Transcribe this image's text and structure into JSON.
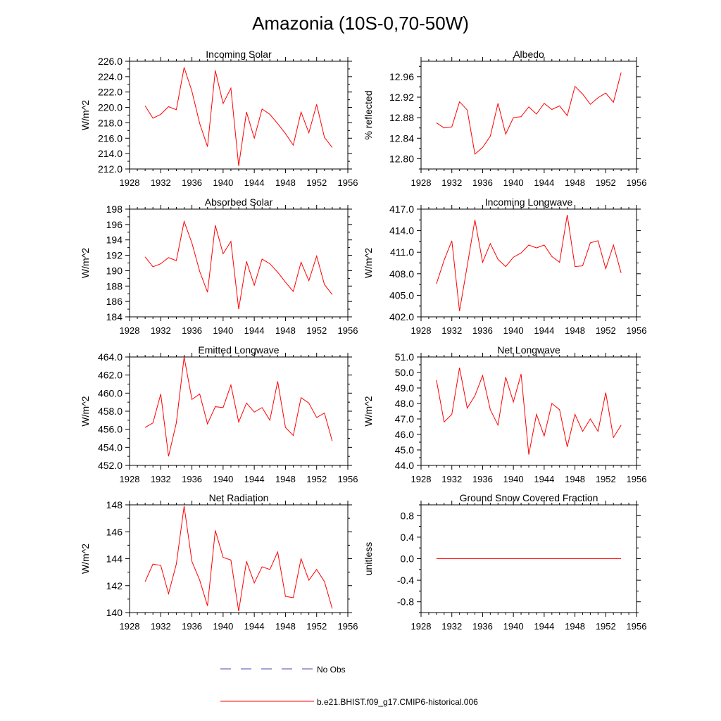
{
  "title": "Amazonia (10S-0,70-50W)",
  "colors": {
    "model": "#ff0000",
    "obs": "#4a4aa8",
    "axis": "#000000"
  },
  "legend": {
    "obs_label": "No Obs",
    "model_label": "b.e21.BHIST.f09_g17.CMIP6-historical.006"
  },
  "chart_data": [
    {
      "type": "line",
      "title": "Incoming Solar",
      "xlabel": "",
      "ylabel": "W/m^2",
      "xlim": [
        1928,
        1956
      ],
      "ylim": [
        212,
        226
      ],
      "xticks": [
        1928,
        1932,
        1936,
        1940,
        1944,
        1948,
        1952,
        1956
      ],
      "yticks": [
        212.0,
        214.0,
        216.0,
        218.0,
        220.0,
        222.0,
        224.0,
        226.0
      ],
      "ytick_labels": [
        "212.0",
        "214.0",
        "216.0",
        "218.0",
        "220.0",
        "222.0",
        "224.0",
        "226.0"
      ],
      "x": [
        1930,
        1931,
        1932,
        1933,
        1934,
        1935,
        1936,
        1937,
        1938,
        1939,
        1940,
        1941,
        1942,
        1943,
        1944,
        1945,
        1946,
        1947,
        1948,
        1949,
        1950,
        1951,
        1952,
        1953,
        1954
      ],
      "series": [
        {
          "name": "b.e21.BHIST.f09_g17.CMIP6-historical.006",
          "values": [
            220.2,
            218.6,
            219.1,
            220.1,
            219.7,
            225.2,
            222.1,
            217.9,
            214.9,
            224.8,
            220.5,
            222.5,
            212.4,
            219.4,
            216.0,
            219.8,
            219.1,
            217.9,
            216.6,
            215.1,
            219.4,
            216.7,
            220.4,
            216.1,
            214.8
          ]
        }
      ]
    },
    {
      "type": "line",
      "title": "Albedo",
      "xlabel": "",
      "ylabel": "% reflected",
      "xlim": [
        1928,
        1956
      ],
      "ylim": [
        12.78,
        12.99
      ],
      "xticks": [
        1928,
        1932,
        1936,
        1940,
        1944,
        1948,
        1952,
        1956
      ],
      "yticks": [
        12.8,
        12.84,
        12.88,
        12.92,
        12.96
      ],
      "ytick_labels": [
        "12.80",
        "12.84",
        "12.88",
        "12.92",
        "12.96"
      ],
      "x": [
        1930,
        1931,
        1932,
        1933,
        1934,
        1935,
        1936,
        1937,
        1938,
        1939,
        1940,
        1941,
        1942,
        1943,
        1944,
        1945,
        1946,
        1947,
        1948,
        1949,
        1950,
        1951,
        1952,
        1953,
        1954
      ],
      "series": [
        {
          "name": "b.e21.BHIST.f09_g17.CMIP6-historical.006",
          "values": [
            12.87,
            12.86,
            12.862,
            12.911,
            12.895,
            12.809,
            12.822,
            12.844,
            12.908,
            12.848,
            12.88,
            12.882,
            12.901,
            12.887,
            12.908,
            12.896,
            12.903,
            12.884,
            12.941,
            12.926,
            12.906,
            12.919,
            12.928,
            12.91,
            12.968
          ]
        }
      ]
    },
    {
      "type": "line",
      "title": "Absorbed Solar",
      "xlabel": "",
      "ylabel": "W/m^2",
      "xlim": [
        1928,
        1956
      ],
      "ylim": [
        184,
        198
      ],
      "xticks": [
        1928,
        1932,
        1936,
        1940,
        1944,
        1948,
        1952,
        1956
      ],
      "yticks": [
        184,
        186,
        188,
        190,
        192,
        194,
        196,
        198
      ],
      "ytick_labels": [
        "184",
        "186",
        "188",
        "190",
        "192",
        "194",
        "196",
        "198"
      ],
      "x": [
        1930,
        1931,
        1932,
        1933,
        1934,
        1935,
        1936,
        1937,
        1938,
        1939,
        1940,
        1941,
        1942,
        1943,
        1944,
        1945,
        1946,
        1947,
        1948,
        1949,
        1950,
        1951,
        1952,
        1953,
        1954
      ],
      "series": [
        {
          "name": "b.e21.BHIST.f09_g17.CMIP6-historical.006",
          "values": [
            191.8,
            190.5,
            190.9,
            191.7,
            191.3,
            196.4,
            193.6,
            189.9,
            187.2,
            195.9,
            192.2,
            193.8,
            185.0,
            191.2,
            188.1,
            191.5,
            190.9,
            189.8,
            188.5,
            187.3,
            191.1,
            188.7,
            191.9,
            188.2,
            186.9
          ]
        }
      ]
    },
    {
      "type": "line",
      "title": "Incoming Longwave",
      "xlabel": "",
      "ylabel": "W/m^2",
      "xlim": [
        1928,
        1956
      ],
      "ylim": [
        402,
        417
      ],
      "xticks": [
        1928,
        1932,
        1936,
        1940,
        1944,
        1948,
        1952,
        1956
      ],
      "yticks": [
        402.0,
        405.0,
        408.0,
        411.0,
        414.0,
        417.0
      ],
      "ytick_labels": [
        "402.0",
        "405.0",
        "408.0",
        "411.0",
        "414.0",
        "417.0"
      ],
      "x": [
        1930,
        1931,
        1932,
        1933,
        1934,
        1935,
        1936,
        1937,
        1938,
        1939,
        1940,
        1941,
        1942,
        1943,
        1944,
        1945,
        1946,
        1947,
        1948,
        1949,
        1950,
        1951,
        1952,
        1953,
        1954
      ],
      "series": [
        {
          "name": "b.e21.BHIST.f09_g17.CMIP6-historical.006",
          "values": [
            406.6,
            409.9,
            412.6,
            402.8,
            409.1,
            415.5,
            409.6,
            412.2,
            410.0,
            409.0,
            410.3,
            410.9,
            412.0,
            411.6,
            412.0,
            410.4,
            409.6,
            416.2,
            409.0,
            409.1,
            412.3,
            412.6,
            408.7,
            412.0,
            408.1
          ]
        }
      ]
    },
    {
      "type": "line",
      "title": "Emitted Longwave",
      "xlabel": "",
      "ylabel": "W/m^2",
      "xlim": [
        1928,
        1956
      ],
      "ylim": [
        452,
        464
      ],
      "xticks": [
        1928,
        1932,
        1936,
        1940,
        1944,
        1948,
        1952,
        1956
      ],
      "yticks": [
        452.0,
        454.0,
        456.0,
        458.0,
        460.0,
        462.0,
        464.0
      ],
      "ytick_labels": [
        "452.0",
        "454.0",
        "456.0",
        "458.0",
        "460.0",
        "462.0",
        "464.0"
      ],
      "x": [
        1930,
        1931,
        1932,
        1933,
        1934,
        1935,
        1936,
        1937,
        1938,
        1939,
        1940,
        1941,
        1942,
        1943,
        1944,
        1945,
        1946,
        1947,
        1948,
        1949,
        1950,
        1951,
        1952,
        1953,
        1954
      ],
      "series": [
        {
          "name": "b.e21.BHIST.f09_g17.CMIP6-historical.006",
          "values": [
            456.2,
            456.7,
            459.9,
            453.0,
            456.7,
            464.0,
            459.3,
            459.9,
            456.6,
            458.5,
            458.4,
            460.9,
            456.8,
            458.9,
            457.9,
            458.4,
            457.0,
            461.3,
            456.2,
            455.3,
            459.5,
            458.9,
            457.3,
            457.8,
            454.7
          ]
        }
      ]
    },
    {
      "type": "line",
      "title": "Net Longwave",
      "xlabel": "",
      "ylabel": "W/m^2",
      "xlim": [
        1928,
        1956
      ],
      "ylim": [
        44,
        51
      ],
      "xticks": [
        1928,
        1932,
        1936,
        1940,
        1944,
        1948,
        1952,
        1956
      ],
      "yticks": [
        44.0,
        45.0,
        46.0,
        47.0,
        48.0,
        49.0,
        50.0,
        51.0
      ],
      "ytick_labels": [
        "44.0",
        "45.0",
        "46.0",
        "47.0",
        "48.0",
        "49.0",
        "50.0",
        "51.0"
      ],
      "x": [
        1930,
        1931,
        1932,
        1933,
        1934,
        1935,
        1936,
        1937,
        1938,
        1939,
        1940,
        1941,
        1942,
        1943,
        1944,
        1945,
        1946,
        1947,
        1948,
        1949,
        1950,
        1951,
        1952,
        1953,
        1954
      ],
      "series": [
        {
          "name": "b.e21.BHIST.f09_g17.CMIP6-historical.006",
          "values": [
            49.5,
            46.8,
            47.3,
            50.3,
            47.7,
            48.5,
            49.8,
            47.6,
            46.6,
            49.7,
            48.1,
            49.9,
            44.7,
            47.3,
            45.9,
            48.0,
            47.6,
            45.2,
            47.3,
            46.2,
            47.0,
            46.2,
            48.7,
            45.8,
            46.6
          ]
        }
      ]
    },
    {
      "type": "line",
      "title": "Net Radiation",
      "xlabel": "",
      "ylabel": "W/m^2",
      "xlim": [
        1928,
        1956
      ],
      "ylim": [
        140,
        148
      ],
      "xticks": [
        1928,
        1932,
        1936,
        1940,
        1944,
        1948,
        1952,
        1956
      ],
      "yticks": [
        140,
        142,
        144,
        146,
        148
      ],
      "ytick_labels": [
        "140",
        "142",
        "144",
        "146",
        "148"
      ],
      "x": [
        1930,
        1931,
        1932,
        1933,
        1934,
        1935,
        1936,
        1937,
        1938,
        1939,
        1940,
        1941,
        1942,
        1943,
        1944,
        1945,
        1946,
        1947,
        1948,
        1949,
        1950,
        1951,
        1952,
        1953,
        1954
      ],
      "series": [
        {
          "name": "b.e21.BHIST.f09_g17.CMIP6-historical.006",
          "values": [
            142.3,
            143.6,
            143.5,
            141.4,
            143.6,
            147.9,
            143.8,
            142.4,
            140.5,
            146.1,
            144.1,
            143.9,
            140.1,
            143.8,
            142.2,
            143.4,
            143.2,
            144.5,
            141.2,
            141.1,
            144.0,
            142.4,
            143.2,
            142.3,
            140.3
          ]
        }
      ]
    },
    {
      "type": "line",
      "title": "Ground Snow Covered Fraction",
      "xlabel": "",
      "ylabel": "unitless",
      "xlim": [
        1928,
        1956
      ],
      "ylim": [
        -1.0,
        1.0
      ],
      "xticks": [
        1928,
        1932,
        1936,
        1940,
        1944,
        1948,
        1952,
        1956
      ],
      "yticks": [
        -0.8,
        -0.4,
        0.0,
        0.4,
        0.8
      ],
      "ytick_labels": [
        "-0.8",
        "-0.4",
        "0.0",
        "0.4",
        "0.8"
      ],
      "x": [
        1930,
        1931,
        1932,
        1933,
        1934,
        1935,
        1936,
        1937,
        1938,
        1939,
        1940,
        1941,
        1942,
        1943,
        1944,
        1945,
        1946,
        1947,
        1948,
        1949,
        1950,
        1951,
        1952,
        1953,
        1954
      ],
      "series": [
        {
          "name": "b.e21.BHIST.f09_g17.CMIP6-historical.006",
          "values": [
            0,
            0,
            0,
            0,
            0,
            0,
            0,
            0,
            0,
            0,
            0,
            0,
            0,
            0,
            0,
            0,
            0,
            0,
            0,
            0,
            0,
            0,
            0,
            0,
            0
          ]
        }
      ]
    }
  ]
}
